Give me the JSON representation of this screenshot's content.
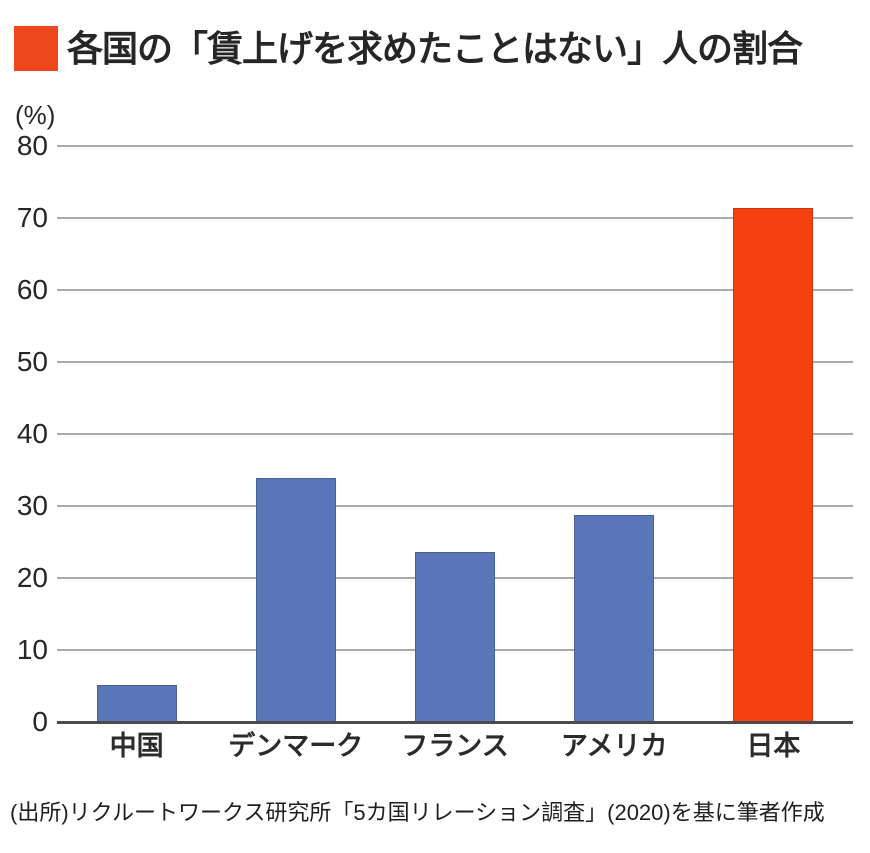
{
  "header": {
    "title": "各国の「賃上げを求めたことはない」人の割合",
    "accent_color": "#ED481D"
  },
  "chart_data": {
    "type": "bar",
    "title": "各国の「賃上げを求めたことはない」人の割合",
    "unit_label": "(%)",
    "categories": [
      "中国",
      "デンマーク",
      "フランス",
      "アメリカ",
      "日本"
    ],
    "values": [
      5.1,
      33.9,
      23.6,
      28.7,
      71.4
    ],
    "ylim": [
      0,
      80
    ],
    "ytick_step": 10,
    "ytick_labels": [
      "0",
      "10",
      "20",
      "30",
      "40",
      "50",
      "60",
      "70",
      "80"
    ],
    "grid": true,
    "legend": "none",
    "default_bar_color": "#5A76B9",
    "highlight_category": "日本",
    "highlight_color": "#F5410F",
    "bar_colors": [
      "#5A76B9",
      "#5A76B9",
      "#5A76B9",
      "#5A76B9",
      "#F5410F"
    ]
  },
  "footer": {
    "source": "(出所)リクルートワークス研究所「5カ国リレーション調査」(2020)を基に筆者作成"
  },
  "colors": {
    "gridline": "#A9A9AC",
    "axis_line": "#4B4B4B",
    "text": "#262626"
  }
}
